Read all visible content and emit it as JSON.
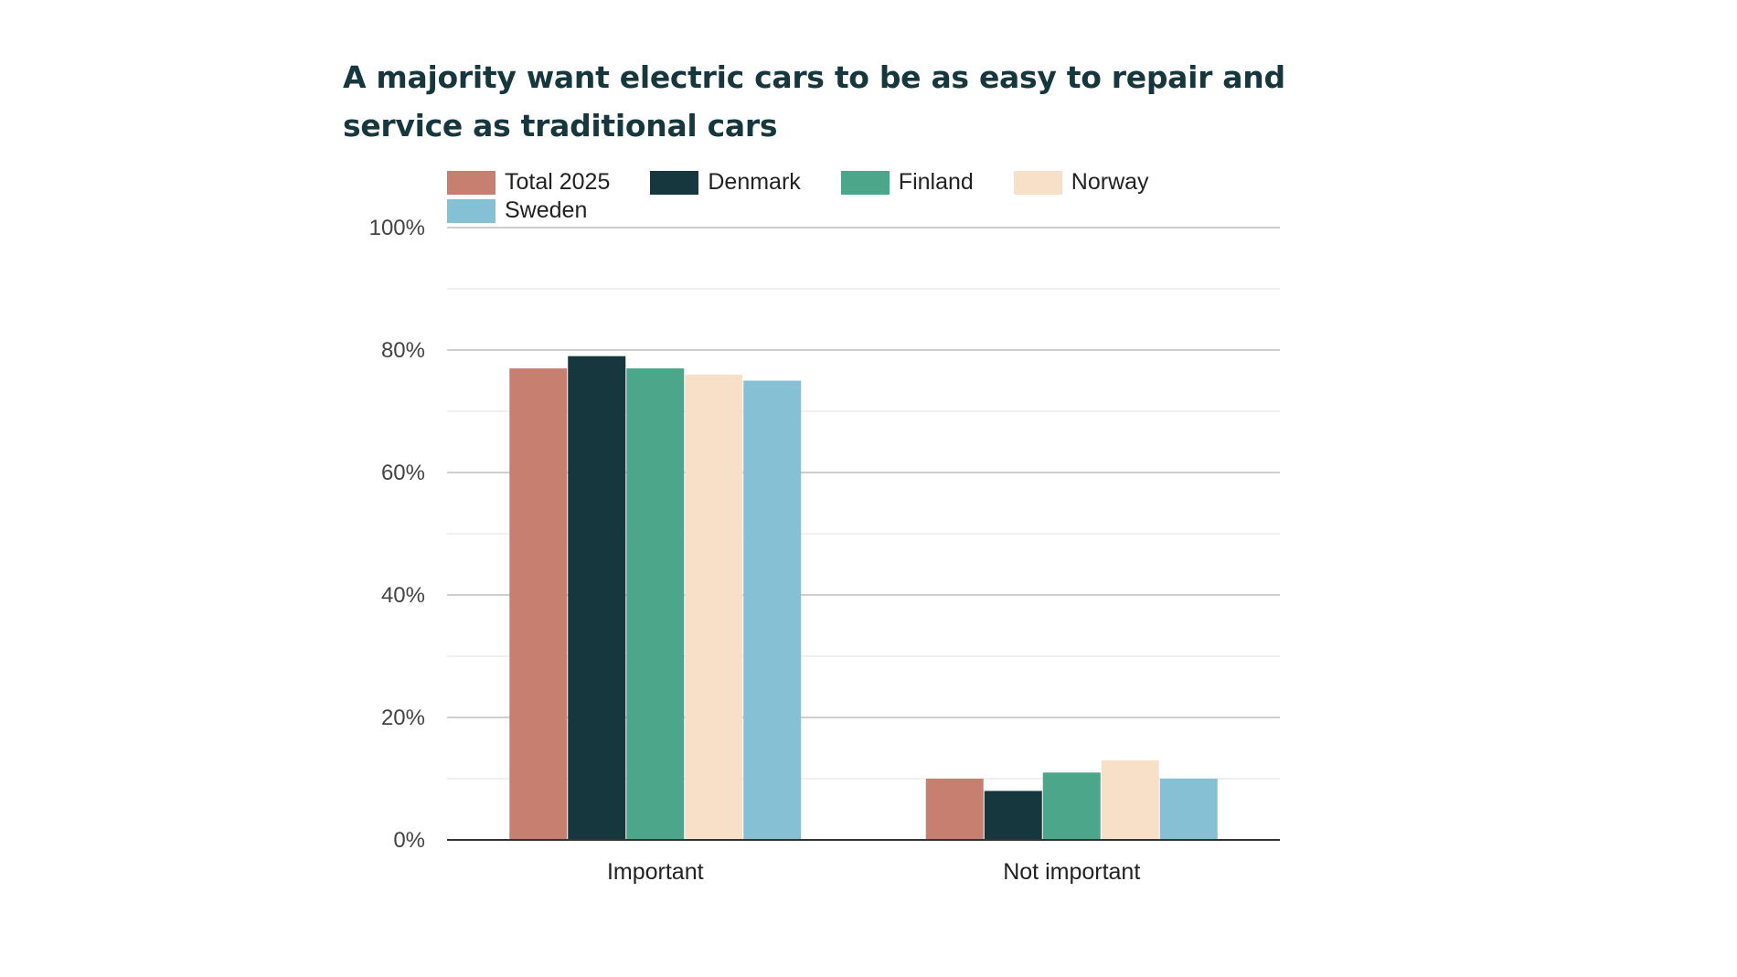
{
  "chart_data": {
    "type": "bar",
    "title": "A majority want electric cars to be as easy to repair and service as traditional cars",
    "categories": [
      "Important",
      "Not important"
    ],
    "series": [
      {
        "name": "Total 2025",
        "color": "#c77f6f",
        "values": [
          77,
          10
        ]
      },
      {
        "name": "Denmark",
        "color": "#17373e",
        "values": [
          79,
          8
        ]
      },
      {
        "name": "Finland",
        "color": "#4ba68a",
        "values": [
          77,
          11
        ]
      },
      {
        "name": "Norway",
        "color": "#f7e0c7",
        "values": [
          76,
          13
        ]
      },
      {
        "name": "Sweden",
        "color": "#86c0d4",
        "values": [
          75,
          10
        ]
      }
    ],
    "ylim": [
      0,
      100
    ],
    "yticks": [
      "0%",
      "20%",
      "40%",
      "60%",
      "80%",
      "100%"
    ],
    "ytick_values": [
      0,
      20,
      40,
      60,
      80,
      100
    ],
    "grid": true,
    "legend_position": "top-left",
    "xlabel": "",
    "ylabel": ""
  }
}
